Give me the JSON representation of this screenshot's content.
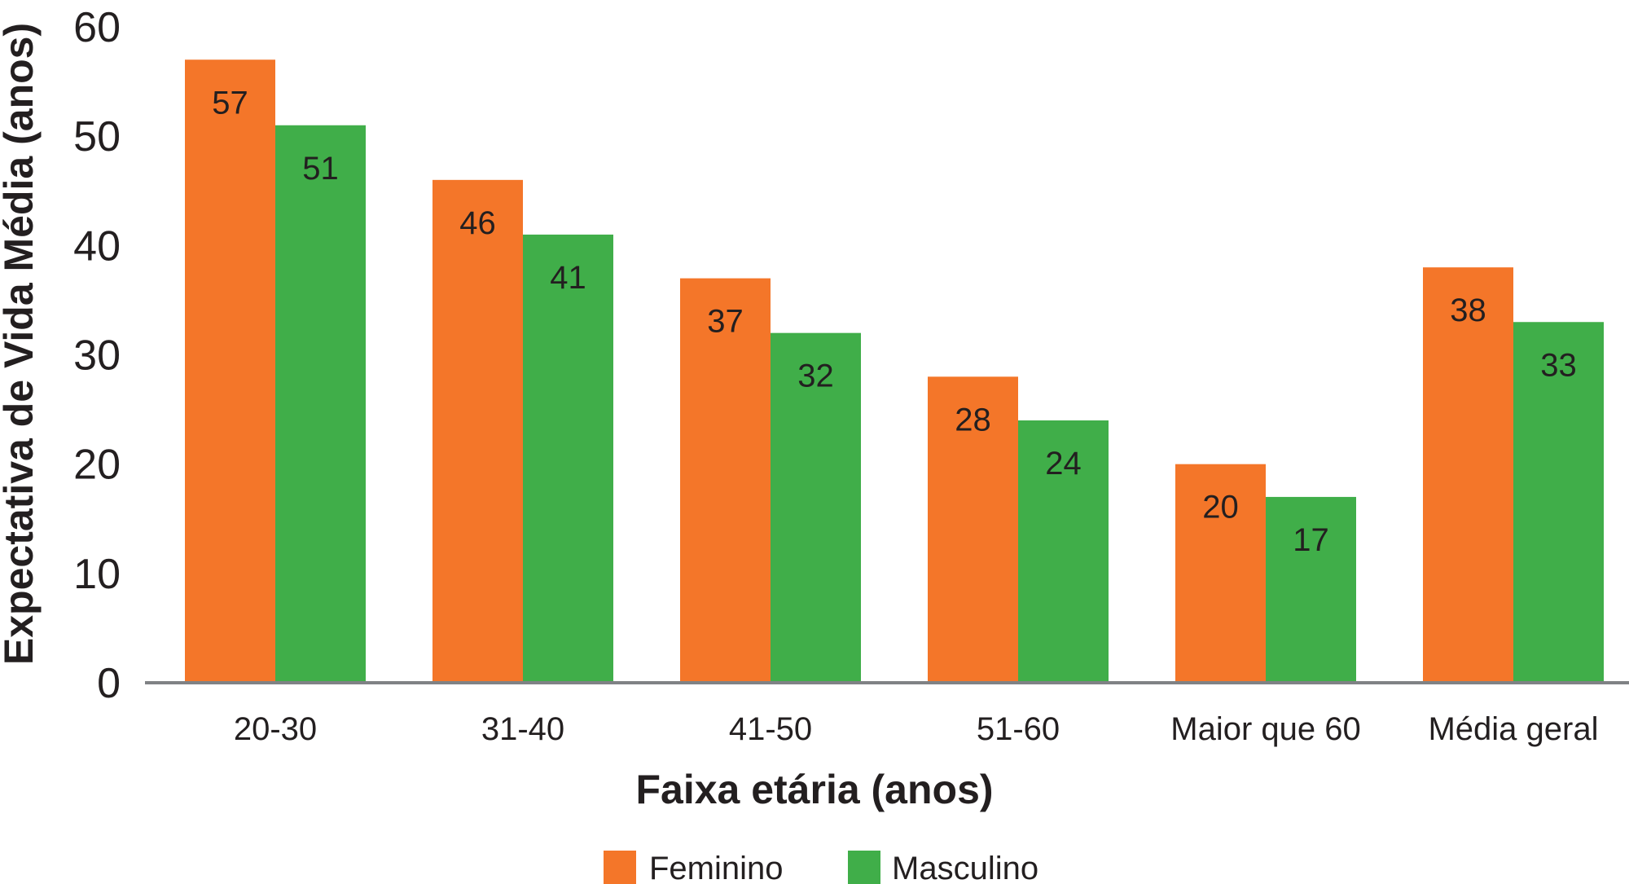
{
  "chart_data": {
    "type": "bar",
    "title": "",
    "xlabel": "Faixa etária (anos)",
    "ylabel": "Expectativa de Vida Média (anos)",
    "ylim": [
      0,
      60
    ],
    "yticks": [
      "0",
      "10",
      "20",
      "30",
      "40",
      "50",
      "60"
    ],
    "categories": [
      "20-30",
      "31-40",
      "41-50",
      "51-60",
      "Maior que 60",
      "Média geral"
    ],
    "series": [
      {
        "name": "Feminino",
        "color": "#f47629",
        "values": [
          57,
          46,
          37,
          28,
          20,
          38
        ]
      },
      {
        "name": "Masculino",
        "color": "#40ae49",
        "values": [
          51,
          41,
          32,
          24,
          17,
          33
        ]
      }
    ],
    "grid": false,
    "legend_position": "bottom",
    "axis_color": "#808285"
  }
}
